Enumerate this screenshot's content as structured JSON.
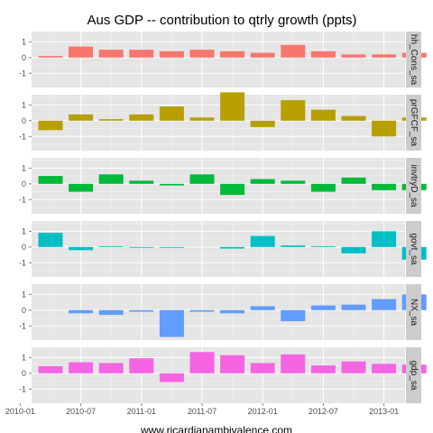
{
  "chart_data": {
    "type": "bar",
    "title": "Aus GDP -- contribution to qtrly growth (ppts)",
    "xlabel": "www.ricardianambivalence.com",
    "ylabel": "",
    "x_tick_labels": [
      "2010-01",
      "2010-07",
      "2011-01",
      "2011-07",
      "2012-01",
      "2012-07",
      "2013-01"
    ],
    "x_ticks_quarter_index": [
      -1,
      1,
      3,
      5,
      7,
      9,
      11
    ],
    "quarters": 14,
    "ylim": [
      -1.9,
      1.65
    ],
    "y_ticks": [
      1,
      0,
      -1
    ],
    "grid": true,
    "facets": [
      {
        "name": "hh_Cons_sa",
        "color": "#F8766D",
        "values": [
          0.1,
          0.7,
          0.5,
          0.5,
          0.4,
          0.5,
          0.4,
          0.3,
          0.8,
          0.4,
          0.2,
          0.2,
          0.3,
          0.0
        ]
      },
      {
        "name": "prGFCF_sa",
        "color": "#B79F00",
        "values": [
          -0.6,
          0.4,
          0.1,
          0.4,
          0.9,
          0.2,
          1.8,
          -0.4,
          1.3,
          0.7,
          0.3,
          -1.0,
          0.2,
          0.0
        ]
      },
      {
        "name": "invtryD_sa",
        "color": "#00BA38",
        "values": [
          0.5,
          -0.5,
          0.6,
          0.2,
          -0.1,
          0.6,
          -0.7,
          0.3,
          0.2,
          -0.5,
          0.4,
          -0.4,
          -0.4,
          0.0
        ]
      },
      {
        "name": "govt_sa",
        "color": "#00BFC4",
        "values": [
          0.9,
          -0.2,
          0.05,
          -0.05,
          -0.05,
          0.0,
          -0.1,
          0.7,
          0.1,
          0.05,
          -0.4,
          1.0,
          -0.8,
          0.0
        ]
      },
      {
        "name": "NX_sa",
        "color": "#619CFF",
        "values": [
          0.0,
          -0.2,
          -0.3,
          -0.1,
          -1.7,
          -0.1,
          -0.2,
          0.25,
          -0.7,
          0.3,
          0.35,
          0.7,
          1.0,
          0.0
        ]
      },
      {
        "name": "gdp_sa",
        "color": "#F564E3",
        "values": [
          0.45,
          0.7,
          0.65,
          0.95,
          -0.55,
          1.35,
          1.15,
          0.65,
          1.2,
          0.5,
          0.75,
          0.6,
          0.55,
          0.0
        ]
      }
    ]
  }
}
